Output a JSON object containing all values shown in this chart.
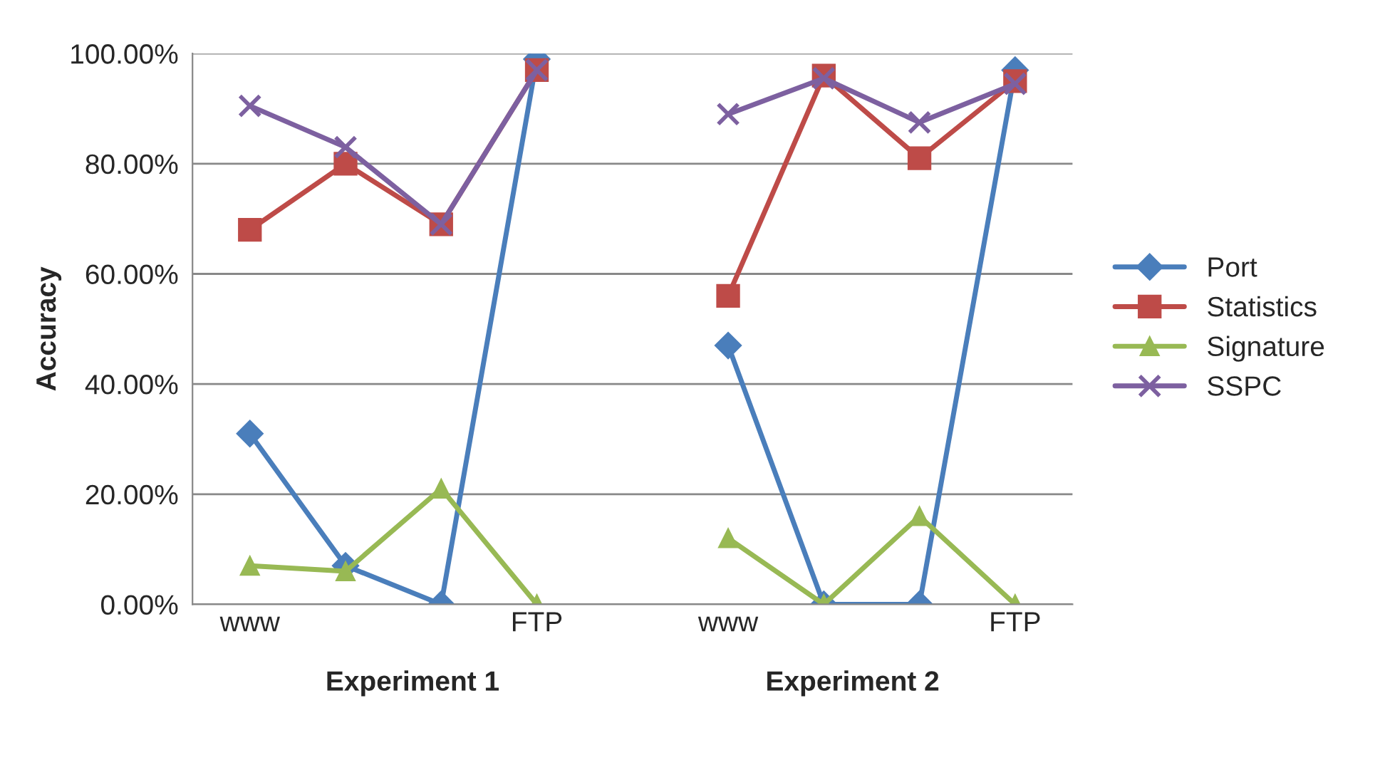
{
  "chart_data": {
    "type": "line",
    "ylabel": "Accuracy",
    "categories": [
      "www",
      null,
      null,
      "FTP",
      null,
      "www",
      null,
      null,
      "FTP"
    ],
    "series": [
      {
        "name": "Port",
        "color": "#4a7ebb",
        "marker": "diamond",
        "values": [
          31,
          7,
          0,
          99,
          null,
          47,
          0,
          0,
          97
        ]
      },
      {
        "name": "Statistics",
        "color": "#be4b48",
        "marker": "square",
        "values": [
          68,
          80,
          69,
          97,
          null,
          56,
          96,
          81,
          95
        ]
      },
      {
        "name": "Signature",
        "color": "#98b954",
        "marker": "triangle",
        "values": [
          7,
          6,
          21,
          0,
          null,
          12,
          0,
          16,
          0
        ]
      },
      {
        "name": "SSPC",
        "color": "#7d60a0",
        "marker": "cross",
        "values": [
          90.5,
          83,
          69,
          97,
          null,
          89,
          95.5,
          87.5,
          94.5
        ]
      }
    ],
    "ylim": [
      0,
      100
    ],
    "yticks": [
      {
        "value": 0,
        "label": "0.00%"
      },
      {
        "value": 20,
        "label": "20.00%"
      },
      {
        "value": 40,
        "label": "40.00%"
      },
      {
        "value": 60,
        "label": "60.00%"
      },
      {
        "value": 80,
        "label": "80.00%"
      },
      {
        "value": 100,
        "label": "100.00%"
      }
    ],
    "grid": "y",
    "legend": "right",
    "line_style": "solid",
    "annotations": [
      "Experiment 1",
      "Experiment 2"
    ]
  }
}
